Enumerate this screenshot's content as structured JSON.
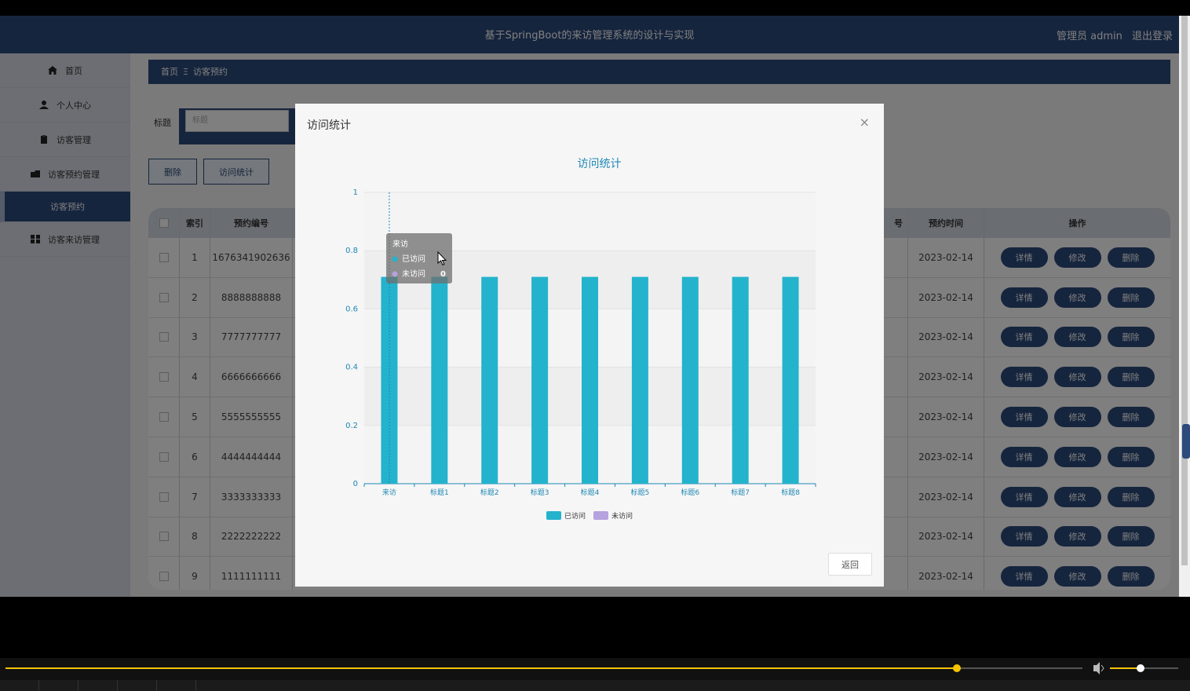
{
  "header": {
    "title": "基于SpringBoot的来访管理系统的设计与实现",
    "user_label": "管理员 admin",
    "logout": "退出登录"
  },
  "sidebar": {
    "items": [
      {
        "label": "首页",
        "icon": "home-icon"
      },
      {
        "label": "个人中心",
        "icon": "user-icon"
      },
      {
        "label": "访客管理",
        "icon": "clipboard-icon"
      },
      {
        "label": "访客预约管理",
        "icon": "folder-icon"
      },
      {
        "label": "访客预约",
        "icon": ""
      },
      {
        "label": "访客来访管理",
        "icon": "grid-icon"
      }
    ]
  },
  "breadcrumb": {
    "home": "首页",
    "sep": "Ξ",
    "current": "访客预约"
  },
  "search": {
    "label": "标题",
    "placeholder": "标题"
  },
  "toolbar": {
    "delete_label": "删除",
    "stats_label": "访问统计"
  },
  "table": {
    "headers": {
      "index": "索引",
      "code": "预约编号",
      "time": "预约时间",
      "ops": "操作",
      "partial": "号"
    },
    "rows": [
      {
        "index": "1",
        "code": "1676341902636",
        "time": "2023-02-14"
      },
      {
        "index": "2",
        "code": "8888888888",
        "time": "2023-02-14"
      },
      {
        "index": "3",
        "code": "7777777777",
        "time": "2023-02-14"
      },
      {
        "index": "4",
        "code": "6666666666",
        "time": "2023-02-14"
      },
      {
        "index": "5",
        "code": "5555555555",
        "time": "2023-02-14"
      },
      {
        "index": "6",
        "code": "4444444444",
        "time": "2023-02-14"
      },
      {
        "index": "7",
        "code": "3333333333",
        "time": "2023-02-14"
      },
      {
        "index": "8",
        "code": "2222222222",
        "time": "2023-02-14"
      },
      {
        "index": "9",
        "code": "1111111111",
        "time": "2023-02-14"
      }
    ],
    "actions": {
      "detail": "详情",
      "edit": "修改",
      "delete": "删除"
    }
  },
  "modal": {
    "title": "访问统计",
    "close": "×",
    "back": "返回"
  },
  "chart_data": {
    "type": "bar",
    "title": "访问统计",
    "categories": [
      "来访",
      "标题1",
      "标题2",
      "标题3",
      "标题4",
      "标题5",
      "标题6",
      "标题7",
      "标题8"
    ],
    "series": [
      {
        "name": "已访问",
        "color": "#24b3cc",
        "values": [
          0.71,
          0.71,
          0.71,
          0.71,
          0.71,
          0.71,
          0.71,
          0.71,
          0.71
        ]
      },
      {
        "name": "未访问",
        "color": "#b6a2de",
        "values": [
          0,
          0,
          0,
          0,
          0,
          0,
          0,
          0,
          0
        ]
      }
    ],
    "yticks": [
      "0",
      "0.2",
      "0.4",
      "0.6",
      "0.8",
      "1"
    ],
    "ylim": [
      0,
      1
    ],
    "legend": "bottom-center",
    "tooltip": {
      "category": "来访",
      "rows": [
        {
          "name": "已访问",
          "value": ""
        },
        {
          "name": "未访问",
          "value": "0"
        }
      ]
    }
  },
  "colors": {
    "primary": "#2c4a7c",
    "bar": "#24b3cc",
    "bar2": "#b6a2de"
  }
}
